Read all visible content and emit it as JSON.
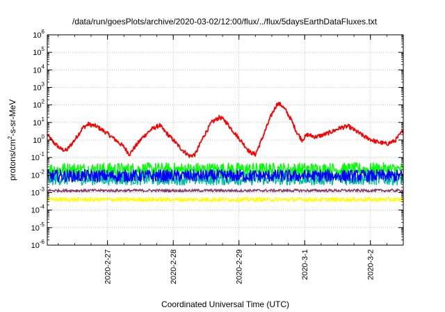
{
  "chart_data": {
    "type": "line",
    "title": "/data/run/goesPlots/archive/2020-03-02/12:00/flux/../flux/5daysEarthDataFluxes.txt",
    "xlabel": "Coordinated Universal Time (UTC)",
    "ylabel": {
      "pre": "protons/cm",
      "sup": "2",
      "post": "-s-sr-MeV"
    },
    "y_scale": "log",
    "ylim": [
      1e-06,
      1000000.0
    ],
    "xlim": [
      "2020-02-26 02:00",
      "2020-03-02 12:00"
    ],
    "grid": true,
    "legend": "none",
    "y_ticks": [
      {
        "value": 1e-06,
        "base": "10",
        "exp": "-6"
      },
      {
        "value": 1e-05,
        "base": "10",
        "exp": "-5"
      },
      {
        "value": 0.0001,
        "base": "10",
        "exp": "-4"
      },
      {
        "value": 0.001,
        "base": "10",
        "exp": "-3"
      },
      {
        "value": 0.01,
        "base": "10",
        "exp": "-2"
      },
      {
        "value": 0.1,
        "base": "10",
        "exp": "-1"
      },
      {
        "value": 1,
        "base": "10",
        "exp": "0"
      },
      {
        "value": 10,
        "base": "10",
        "exp": "1"
      },
      {
        "value": 100,
        "base": "10",
        "exp": "2"
      },
      {
        "value": 1000,
        "base": "10",
        "exp": "3"
      },
      {
        "value": 10000,
        "base": "10",
        "exp": "4"
      },
      {
        "value": 100000,
        "base": "10",
        "exp": "5"
      },
      {
        "value": 1000000,
        "base": "10",
        "exp": "6"
      }
    ],
    "x_ticks": [
      {
        "label": "2020-2-27",
        "date": "2020-02-27"
      },
      {
        "label": "2020-2-28",
        "date": "2020-02-28"
      },
      {
        "label": "2020-2-29",
        "date": "2020-02-29"
      },
      {
        "label": "2020-3-1",
        "date": "2020-03-01"
      },
      {
        "label": "2020-3-2",
        "date": "2020-03-02"
      }
    ],
    "series": [
      {
        "color": "#ff0000",
        "noise_log10": 0.12,
        "points": [
          [
            "2020-02-26 02:00",
            2.0
          ],
          [
            "2020-02-26 04:00",
            0.8
          ],
          [
            "2020-02-26 07:00",
            0.3
          ],
          [
            "2020-02-26 09:00",
            0.25
          ],
          [
            "2020-02-26 12:00",
            1.0
          ],
          [
            "2020-02-26 15:00",
            5.0
          ],
          [
            "2020-02-26 17:00",
            8.0
          ],
          [
            "2020-02-26 20:00",
            6.0
          ],
          [
            "2020-02-26 23:00",
            3.0
          ],
          [
            "2020-02-27 03:00",
            1.0
          ],
          [
            "2020-02-27 06:00",
            0.4
          ],
          [
            "2020-02-27 08:00",
            0.15
          ],
          [
            "2020-02-27 10:00",
            0.4
          ],
          [
            "2020-02-27 13:00",
            1.5
          ],
          [
            "2020-02-27 16:00",
            4.0
          ],
          [
            "2020-02-27 19:00",
            7.0
          ],
          [
            "2020-02-27 21:00",
            3.0
          ],
          [
            "2020-02-28 00:00",
            1.0
          ],
          [
            "2020-02-28 03:00",
            0.3
          ],
          [
            "2020-02-28 06:00",
            0.12
          ],
          [
            "2020-02-28 08:00",
            0.15
          ],
          [
            "2020-02-28 11:00",
            1.5
          ],
          [
            "2020-02-28 14:00",
            10.0
          ],
          [
            "2020-02-28 17:00",
            20.0
          ],
          [
            "2020-02-28 19:00",
            12.0
          ],
          [
            "2020-02-28 22:00",
            3.0
          ],
          [
            "2020-02-29 01:00",
            0.8
          ],
          [
            "2020-02-29 04:00",
            0.2
          ],
          [
            "2020-02-29 06:00",
            0.15
          ],
          [
            "2020-02-29 08:00",
            0.8
          ],
          [
            "2020-02-29 10:00",
            5.0
          ],
          [
            "2020-02-29 12:00",
            30.0
          ],
          [
            "2020-02-29 14:00",
            120.0
          ],
          [
            "2020-02-29 15:30",
            100.0
          ],
          [
            "2020-02-29 17:00",
            50.0
          ],
          [
            "2020-02-29 19:00",
            15.0
          ],
          [
            "2020-02-29 21:00",
            3.0
          ],
          [
            "2020-02-29 23:00",
            1.0
          ],
          [
            "2020-03-01 01:00",
            2.0
          ],
          [
            "2020-03-01 04:00",
            1.5
          ],
          [
            "2020-03-01 07:00",
            2.0
          ],
          [
            "2020-03-01 10:00",
            3.0
          ],
          [
            "2020-03-01 13:00",
            5.0
          ],
          [
            "2020-03-01 16:00",
            6.0
          ],
          [
            "2020-03-01 19:00",
            3.0
          ],
          [
            "2020-03-01 22:00",
            1.5
          ],
          [
            "2020-03-02 02:00",
            0.8
          ],
          [
            "2020-03-02 06:00",
            0.6
          ],
          [
            "2020-03-02 09:00",
            0.9
          ],
          [
            "2020-03-02 12:00",
            3.5
          ]
        ]
      },
      {
        "color": "#00ff00",
        "noise_log10": 0.4,
        "points": [
          [
            "2020-02-26 02:00",
            0.02
          ],
          [
            "2020-03-02 12:00",
            0.02
          ]
        ]
      },
      {
        "color": "#00c0a0",
        "noise_log10": 0.35,
        "points": [
          [
            "2020-02-26 02:00",
            0.006
          ],
          [
            "2020-03-02 12:00",
            0.006
          ]
        ]
      },
      {
        "color": "#0000ff",
        "noise_log10": 0.35,
        "points": [
          [
            "2020-02-26 02:00",
            0.009
          ],
          [
            "2020-03-02 12:00",
            0.009
          ]
        ]
      },
      {
        "color": "#8b3a6a",
        "noise_log10": 0.08,
        "points": [
          [
            "2020-02-26 02:00",
            0.0013
          ],
          [
            "2020-03-02 12:00",
            0.0013
          ]
        ]
      },
      {
        "color": "#ffff00",
        "noise_log10": 0.12,
        "points": [
          [
            "2020-02-26 02:00",
            0.0004
          ],
          [
            "2020-03-02 12:00",
            0.0004
          ]
        ]
      }
    ]
  }
}
